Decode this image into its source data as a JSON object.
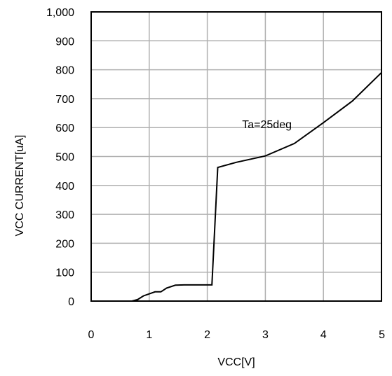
{
  "chart_data": {
    "type": "line",
    "title": "",
    "xlabel": "VCC[V]",
    "ylabel": "VCC CURRENT[uA]",
    "xlim": [
      0,
      5
    ],
    "ylim": [
      0,
      1000
    ],
    "grid": true,
    "x_ticks": [
      0,
      1,
      2,
      3,
      4,
      5
    ],
    "x_tick_labels": [
      "0",
      "1",
      "2",
      "3",
      "4",
      "5"
    ],
    "y_ticks": [
      0,
      100,
      200,
      300,
      400,
      500,
      600,
      700,
      800,
      900,
      1000
    ],
    "y_tick_labels": [
      "0",
      "100",
      "200",
      "300",
      "400",
      "500",
      "600",
      "700",
      "800",
      "900",
      "1,000"
    ],
    "series": [
      {
        "x": [
          0,
          0.7,
          0.8,
          0.9,
          1.0,
          1.1,
          1.2,
          1.3,
          1.45,
          1.6,
          2.08,
          2.18,
          2.5,
          3.0,
          3.5,
          4.0,
          4.5,
          5.0
        ],
        "y": [
          0,
          0,
          5,
          18,
          25,
          32,
          32,
          45,
          55,
          56,
          56,
          462,
          480,
          502,
          545,
          617,
          692,
          790
        ]
      }
    ],
    "annotations": [
      {
        "text": "Ta=25deg",
        "x": 2.6,
        "y": 598
      }
    ],
    "colors": {
      "line": "#000000",
      "grid": "#b0b0b0",
      "frame": "#000000"
    }
  }
}
